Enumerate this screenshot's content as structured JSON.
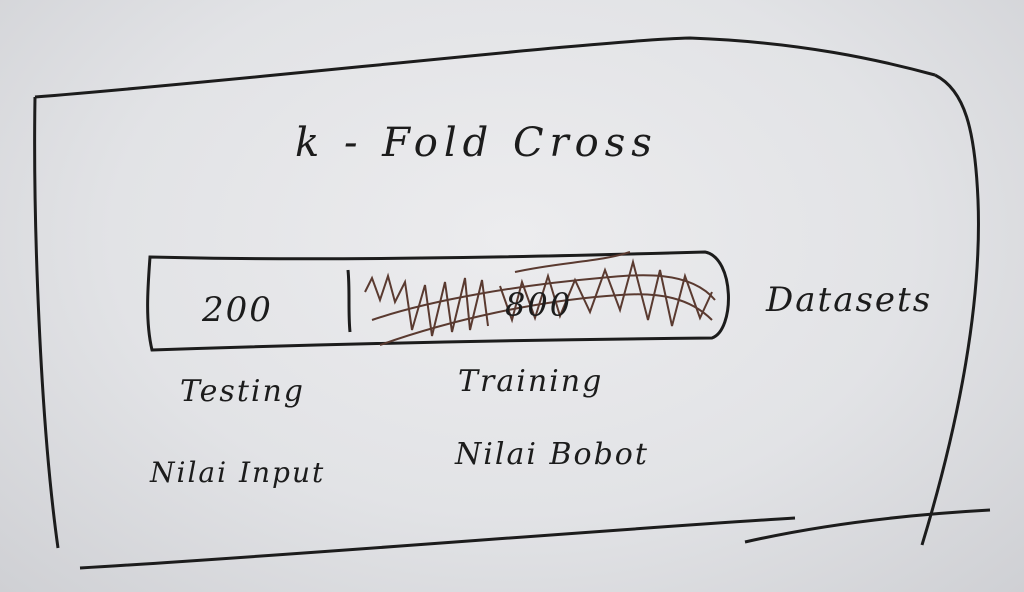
{
  "title": "k - Fold Cross",
  "bar": {
    "testing_count": "200",
    "training_count": "800",
    "caption": "Datasets"
  },
  "labels": {
    "testing": "Testing",
    "training": "Training",
    "testing_sub": "Nilai Input",
    "training_sub": "Nilai Bobot"
  },
  "colors": {
    "ink": "#1c1c1c",
    "paper": "#e6e7ea"
  }
}
